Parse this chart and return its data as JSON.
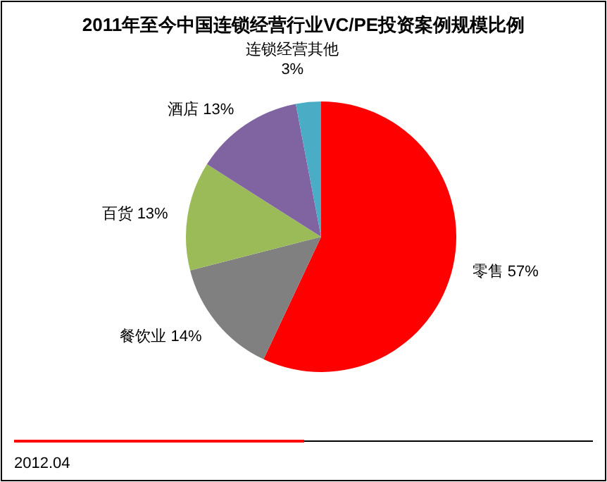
{
  "chart_data": {
    "type": "pie",
    "title": "2011年至今中国连锁经营行业VC/PE投资案例规模比例",
    "categories": [
      "零售",
      "餐饮业",
      "百货",
      "酒店",
      "连锁经营其他"
    ],
    "values": [
      57,
      14,
      13,
      13,
      3
    ],
    "colors": [
      "#ff0000",
      "#808080",
      "#9bbb59",
      "#8064a2",
      "#4bacc6"
    ],
    "value_labels": [
      "57%",
      "14%",
      "13%",
      "13%",
      "3%"
    ],
    "annotations": [
      "2012.04"
    ]
  }
}
